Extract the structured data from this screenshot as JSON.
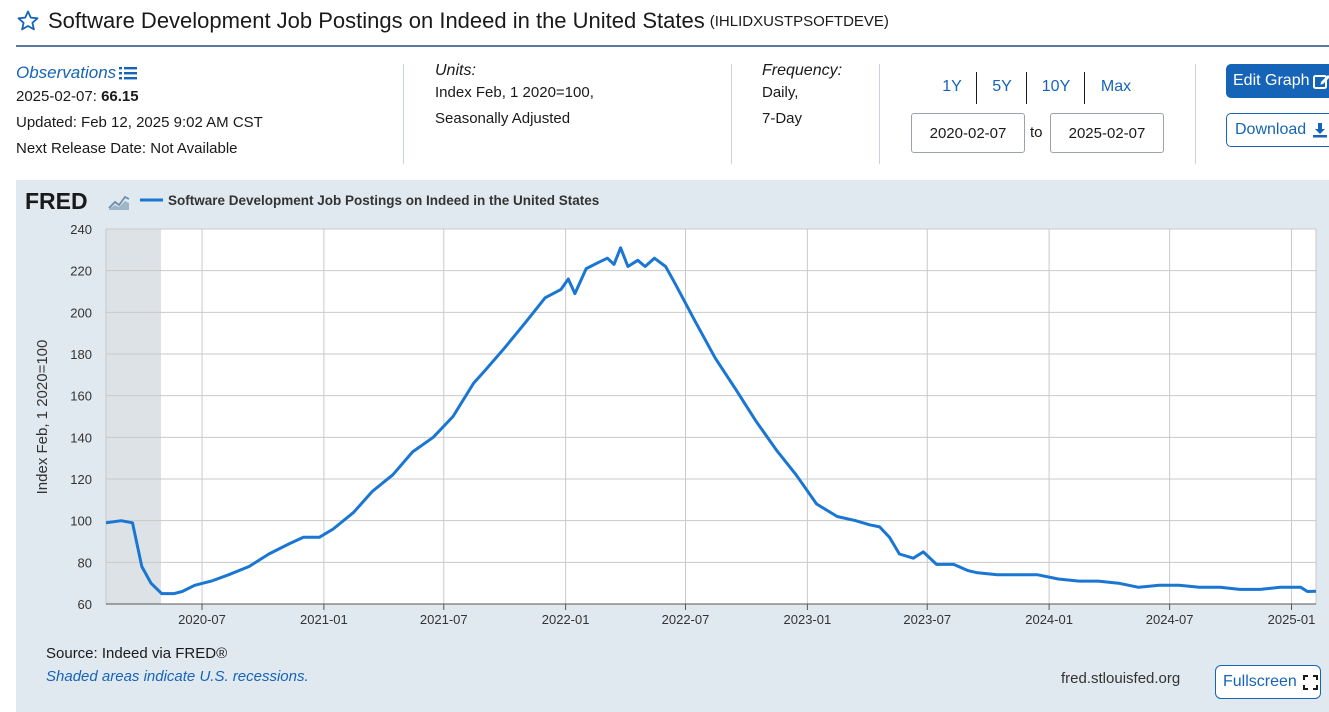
{
  "header": {
    "title": "Software Development Job Postings on Indeed in the United States",
    "series_id": "(IHLIDXUSTPSOFTDEVE)"
  },
  "meta": {
    "observations_label": "Observations",
    "observation_date": "2025-02-07:",
    "observation_value": "66.15",
    "updated": "Updated: Feb 12, 2025 9:02 AM CST",
    "next_release": "Next Release Date: Not Available",
    "units_label": "Units:",
    "units_line1": "Index Feb, 1 2020=100,",
    "units_line2": "Seasonally Adjusted",
    "frequency_label": "Frequency:",
    "frequency_line1": "Daily,",
    "frequency_line2": "7-Day"
  },
  "range": {
    "buttons": [
      "1Y",
      "5Y",
      "10Y",
      "Max"
    ],
    "from": "2020-02-07",
    "to_label": "to",
    "to": "2025-02-07"
  },
  "actions": {
    "edit_graph": "Edit Graph",
    "download": "Download",
    "fullscreen": "Fullscreen"
  },
  "footer": {
    "source": "Source: Indeed via FRED®",
    "recession_note": "Shaded areas indicate U.S. recessions.",
    "site": "fred.stlouisfed.org"
  },
  "colors": {
    "accent": "#1664b8",
    "line": "#1976d2",
    "panel": "#e1e9f0",
    "recession": "#dde2e6"
  },
  "chart_data": {
    "type": "line",
    "brand": "FRED",
    "legend": "Software Development Job Postings on Indeed in the United States",
    "ylabel": "Index Feb, 1 2020=100",
    "ylim": [
      60,
      240
    ],
    "yticks": [
      60,
      80,
      100,
      120,
      140,
      160,
      180,
      200,
      220,
      240
    ],
    "xlim": [
      "2020-02-07",
      "2025-02-07"
    ],
    "xticks": [
      "2020-07",
      "2021-01",
      "2021-07",
      "2022-01",
      "2022-07",
      "2023-01",
      "2023-07",
      "2024-01",
      "2024-07",
      "2025-01"
    ],
    "recessions": [
      [
        "2020-02-07",
        "2020-04-30"
      ]
    ],
    "grid": true,
    "series": [
      {
        "name": "Software Development Job Postings on Indeed in the United States",
        "x": [
          "2020-02-07",
          "2020-03-01",
          "2020-03-18",
          "2020-04-01",
          "2020-04-15",
          "2020-05-01",
          "2020-05-20",
          "2020-06-01",
          "2020-06-20",
          "2020-07-15",
          "2020-08-10",
          "2020-09-10",
          "2020-10-10",
          "2020-11-10",
          "2020-12-01",
          "2020-12-25",
          "2021-01-15",
          "2021-02-15",
          "2021-03-15",
          "2021-04-15",
          "2021-05-15",
          "2021-06-15",
          "2021-07-15",
          "2021-08-15",
          "2021-09-01",
          "2021-10-01",
          "2021-11-01",
          "2021-12-01",
          "2021-12-25",
          "2022-01-05",
          "2022-01-15",
          "2022-02-01",
          "2022-02-20",
          "2022-03-05",
          "2022-03-15",
          "2022-03-25",
          "2022-04-05",
          "2022-04-20",
          "2022-05-01",
          "2022-05-15",
          "2022-06-01",
          "2022-06-15",
          "2022-07-15",
          "2022-08-15",
          "2022-09-15",
          "2022-10-15",
          "2022-11-15",
          "2022-12-15",
          "2023-01-15",
          "2023-02-15",
          "2023-03-15",
          "2023-04-05",
          "2023-04-20",
          "2023-05-05",
          "2023-05-20",
          "2023-06-10",
          "2023-06-25",
          "2023-07-15",
          "2023-08-10",
          "2023-09-01",
          "2023-09-15",
          "2023-10-15",
          "2023-11-15",
          "2023-12-15",
          "2024-01-15",
          "2024-02-15",
          "2024-03-15",
          "2024-04-15",
          "2024-05-15",
          "2024-06-15",
          "2024-07-15",
          "2024-08-15",
          "2024-09-15",
          "2024-10-15",
          "2024-11-15",
          "2024-12-15",
          "2025-01-05",
          "2025-01-15",
          "2025-01-25",
          "2025-02-07"
        ],
        "values": [
          99,
          100,
          99,
          78,
          70,
          65,
          65,
          66,
          69,
          71,
          74,
          78,
          84,
          89,
          92,
          92,
          96,
          104,
          114,
          122,
          133,
          140,
          150,
          166,
          172,
          183,
          195,
          207,
          211,
          216,
          209,
          221,
          224,
          226,
          223,
          231,
          222,
          225,
          222,
          226,
          222,
          214,
          196,
          178,
          163,
          148,
          134,
          122,
          108,
          102,
          100,
          98,
          97,
          92,
          84,
          82,
          85,
          79,
          79,
          76,
          75,
          74,
          74,
          74,
          72,
          71,
          71,
          70,
          68,
          69,
          69,
          68,
          68,
          67,
          67,
          68,
          68,
          68,
          66,
          66.15
        ]
      }
    ]
  }
}
